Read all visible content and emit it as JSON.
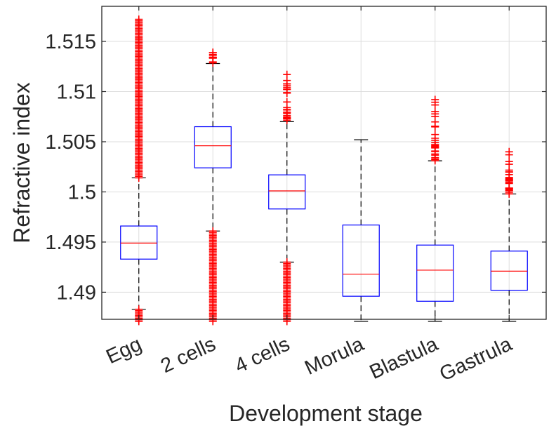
{
  "chart_data": {
    "type": "box",
    "xlabel": "Development stage",
    "ylabel": "Refractive index",
    "ylim": [
      1.4873,
      1.5185
    ],
    "yticks": [
      1.49,
      1.495,
      1.5,
      1.505,
      1.51,
      1.515
    ],
    "ytick_labels": [
      "1.49",
      "1.495",
      "1.5",
      "1.505",
      "1.51",
      "1.515"
    ],
    "grid": true,
    "categories": [
      "Egg",
      "2 cells",
      "4 cells",
      "Morula",
      "Blastula",
      "Gastrula"
    ],
    "boxes": [
      {
        "label": "Egg",
        "q1": 1.4933,
        "median": 1.4949,
        "q3": 1.4966,
        "whisker_low": 1.4883,
        "whisker_high": 1.5014,
        "outliers_low_range": [
          1.4871,
          1.4883
        ],
        "outliers_high_range": [
          1.5014,
          1.5172
        ]
      },
      {
        "label": "2 cells",
        "q1": 1.5024,
        "median": 1.5046,
        "q3": 1.5065,
        "whisker_low": 1.4961,
        "whisker_high": 1.5128,
        "outliers_low_range": [
          1.4871,
          1.4961
        ],
        "outliers_high_range": [
          1.5128,
          1.5139
        ]
      },
      {
        "label": "4 cells",
        "q1": 1.4983,
        "median": 1.5001,
        "q3": 1.5017,
        "whisker_low": 1.493,
        "whisker_high": 1.507,
        "outliers_low_range": [
          1.4871,
          1.493
        ],
        "outliers_high_range": [
          1.507,
          1.5117
        ]
      },
      {
        "label": "Morula",
        "q1": 1.4896,
        "median": 1.4918,
        "q3": 1.4967,
        "whisker_low": 1.4871,
        "whisker_high": 1.5052,
        "outliers_low_range": null,
        "outliers_high_range": null
      },
      {
        "label": "Blastula",
        "q1": 1.4891,
        "median": 1.4922,
        "q3": 1.4947,
        "whisker_low": 1.4871,
        "whisker_high": 1.5031,
        "outliers_low_range": null,
        "outliers_high_range": [
          1.5031,
          1.5092
        ]
      },
      {
        "label": "Gastrula",
        "q1": 1.4902,
        "median": 1.4921,
        "q3": 1.4941,
        "whisker_low": 1.4871,
        "whisker_high": 1.4998,
        "outliers_low_range": null,
        "outliers_high_range": [
          1.4998,
          1.504
        ]
      }
    ],
    "colors": {
      "box": "#0000ff",
      "median": "#ff0000",
      "whisker": "#000000",
      "outlier": "#ff0000",
      "grid": "#dddddd",
      "axis": "#262626"
    }
  }
}
